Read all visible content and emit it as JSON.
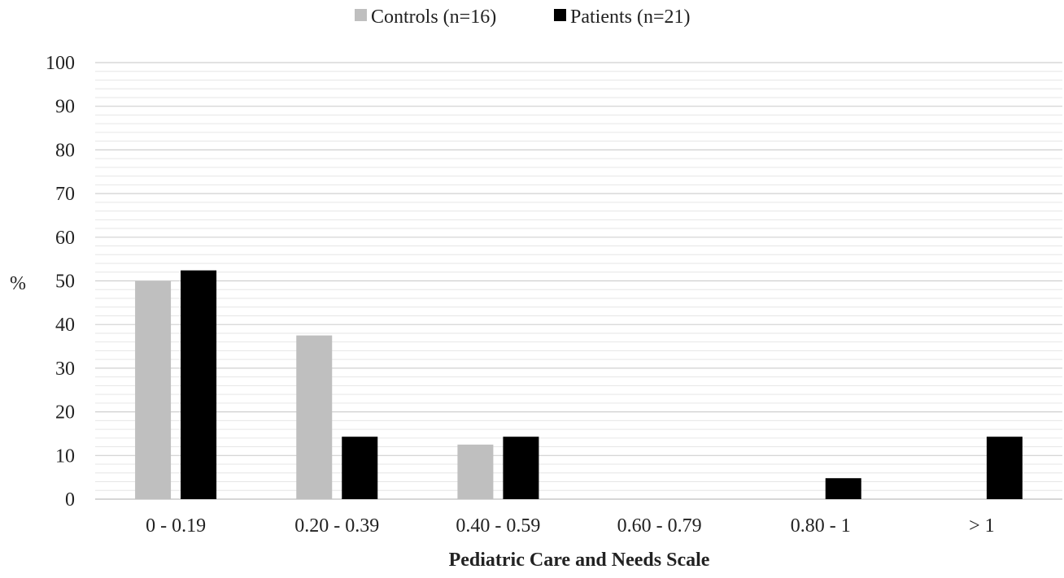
{
  "chart_data": {
    "type": "bar",
    "title": "",
    "xlabel": "Pediatric Care and Needs Scale",
    "ylabel": "%",
    "ylim": [
      0,
      100
    ],
    "yticks": [
      0,
      10,
      20,
      30,
      40,
      50,
      60,
      70,
      80,
      90,
      100
    ],
    "minor_grid": true,
    "legend_position": "top",
    "categories": [
      "0 - 0.19",
      "0.20 - 0.39",
      "0.40 - 0.59",
      "0.60 - 0.79",
      "0.80 - 1",
      "> 1"
    ],
    "series": [
      {
        "name": "Controls (n=16)",
        "color": "#bfbfbf",
        "values": [
          50,
          37.5,
          12.5,
          0,
          0,
          0
        ]
      },
      {
        "name": "Patients (n=21)",
        "color": "#000000",
        "values": [
          52.4,
          14.3,
          14.3,
          0,
          4.8,
          14.3
        ]
      }
    ]
  }
}
